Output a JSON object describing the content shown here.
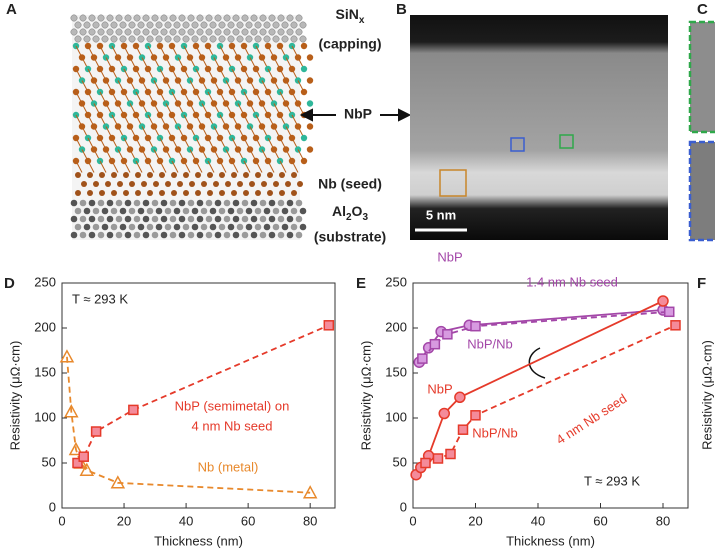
{
  "panel_labels": [
    "A",
    "B",
    "C",
    "D",
    "E",
    "F"
  ],
  "panel_a": {
    "capping": [
      "SiN",
      "x"
    ],
    "capping_note": "(capping)",
    "film": "NbP",
    "seed": "Nb (seed)",
    "substrate": [
      "Al",
      "2",
      "O",
      "3"
    ],
    "substrate_note": "(substrate)"
  },
  "panel_b": {
    "scale_bar": "5 nm"
  },
  "panel_f": {
    "y_label": "Resistivity (μΩ·cm)"
  },
  "chart_data": [
    {
      "type": "line",
      "x_label": "Thickness (nm)",
      "y_label": "Resistivity (μΩ·cm)",
      "xlim": [
        0,
        88
      ],
      "ylim": [
        0,
        250
      ],
      "xticks": [
        0,
        20,
        40,
        60,
        80
      ],
      "yticks": [
        0,
        50,
        100,
        150,
        200,
        250
      ],
      "annotations": [
        "T ≈ 293 K",
        "NbP (semimetal) on",
        "4 nm Nb seed",
        "Nb (metal)"
      ],
      "series": [
        {
          "color": "#e8892c",
          "fill": "none",
          "marker": "triangle",
          "dash": true,
          "x": [
            1.6,
            3,
            4.5,
            6,
            8,
            18,
            80
          ],
          "values": [
            168,
            107,
            65,
            50,
            42,
            28,
            17
          ]
        },
        {
          "color": "#e53a2a",
          "fill": "#f48b9a",
          "marker": "square",
          "dash": true,
          "x": [
            5,
            7,
            11,
            23,
            86
          ],
          "values": [
            50,
            57,
            85,
            109,
            203
          ]
        }
      ]
    },
    {
      "type": "line",
      "x_label": "Thickness (nm)",
      "y_label": "Resistivity (μΩ·cm)",
      "xlim": [
        0,
        88
      ],
      "ylim": [
        0,
        250
      ],
      "xticks": [
        0,
        20,
        40,
        60,
        80
      ],
      "yticks": [
        0,
        50,
        100,
        150,
        200,
        250
      ],
      "annotations": [
        "1.4 nm Nb seed",
        "4 nm Nb seed",
        "T ≈ 293 K"
      ],
      "series": [
        {
          "name": "NbP",
          "color": "#a347a8",
          "fill": "#d79ae0",
          "marker": "circle",
          "dash": false,
          "x": [
            2,
            5,
            9,
            18,
            80
          ],
          "values": [
            162,
            178,
            196,
            203,
            220
          ]
        },
        {
          "name": "NbP/Nb",
          "color": "#a347a8",
          "fill": "#d79ae0",
          "marker": "square",
          "dash": true,
          "x": [
            3,
            7,
            11,
            20,
            82
          ],
          "values": [
            166,
            182,
            193,
            202,
            218
          ]
        },
        {
          "name": "NbP",
          "color": "#e53a2a",
          "fill": "#f48b9a",
          "marker": "circle",
          "dash": false,
          "x": [
            1,
            2.5,
            5,
            10,
            15,
            80
          ],
          "values": [
            37,
            45,
            58,
            105,
            123,
            230
          ]
        },
        {
          "name": "NbP/Nb",
          "color": "#e53a2a",
          "fill": "#f48b9a",
          "marker": "square",
          "dash": true,
          "x": [
            4,
            8,
            12,
            16,
            20,
            84
          ],
          "values": [
            50,
            55,
            60,
            87,
            103,
            203
          ]
        }
      ]
    }
  ]
}
